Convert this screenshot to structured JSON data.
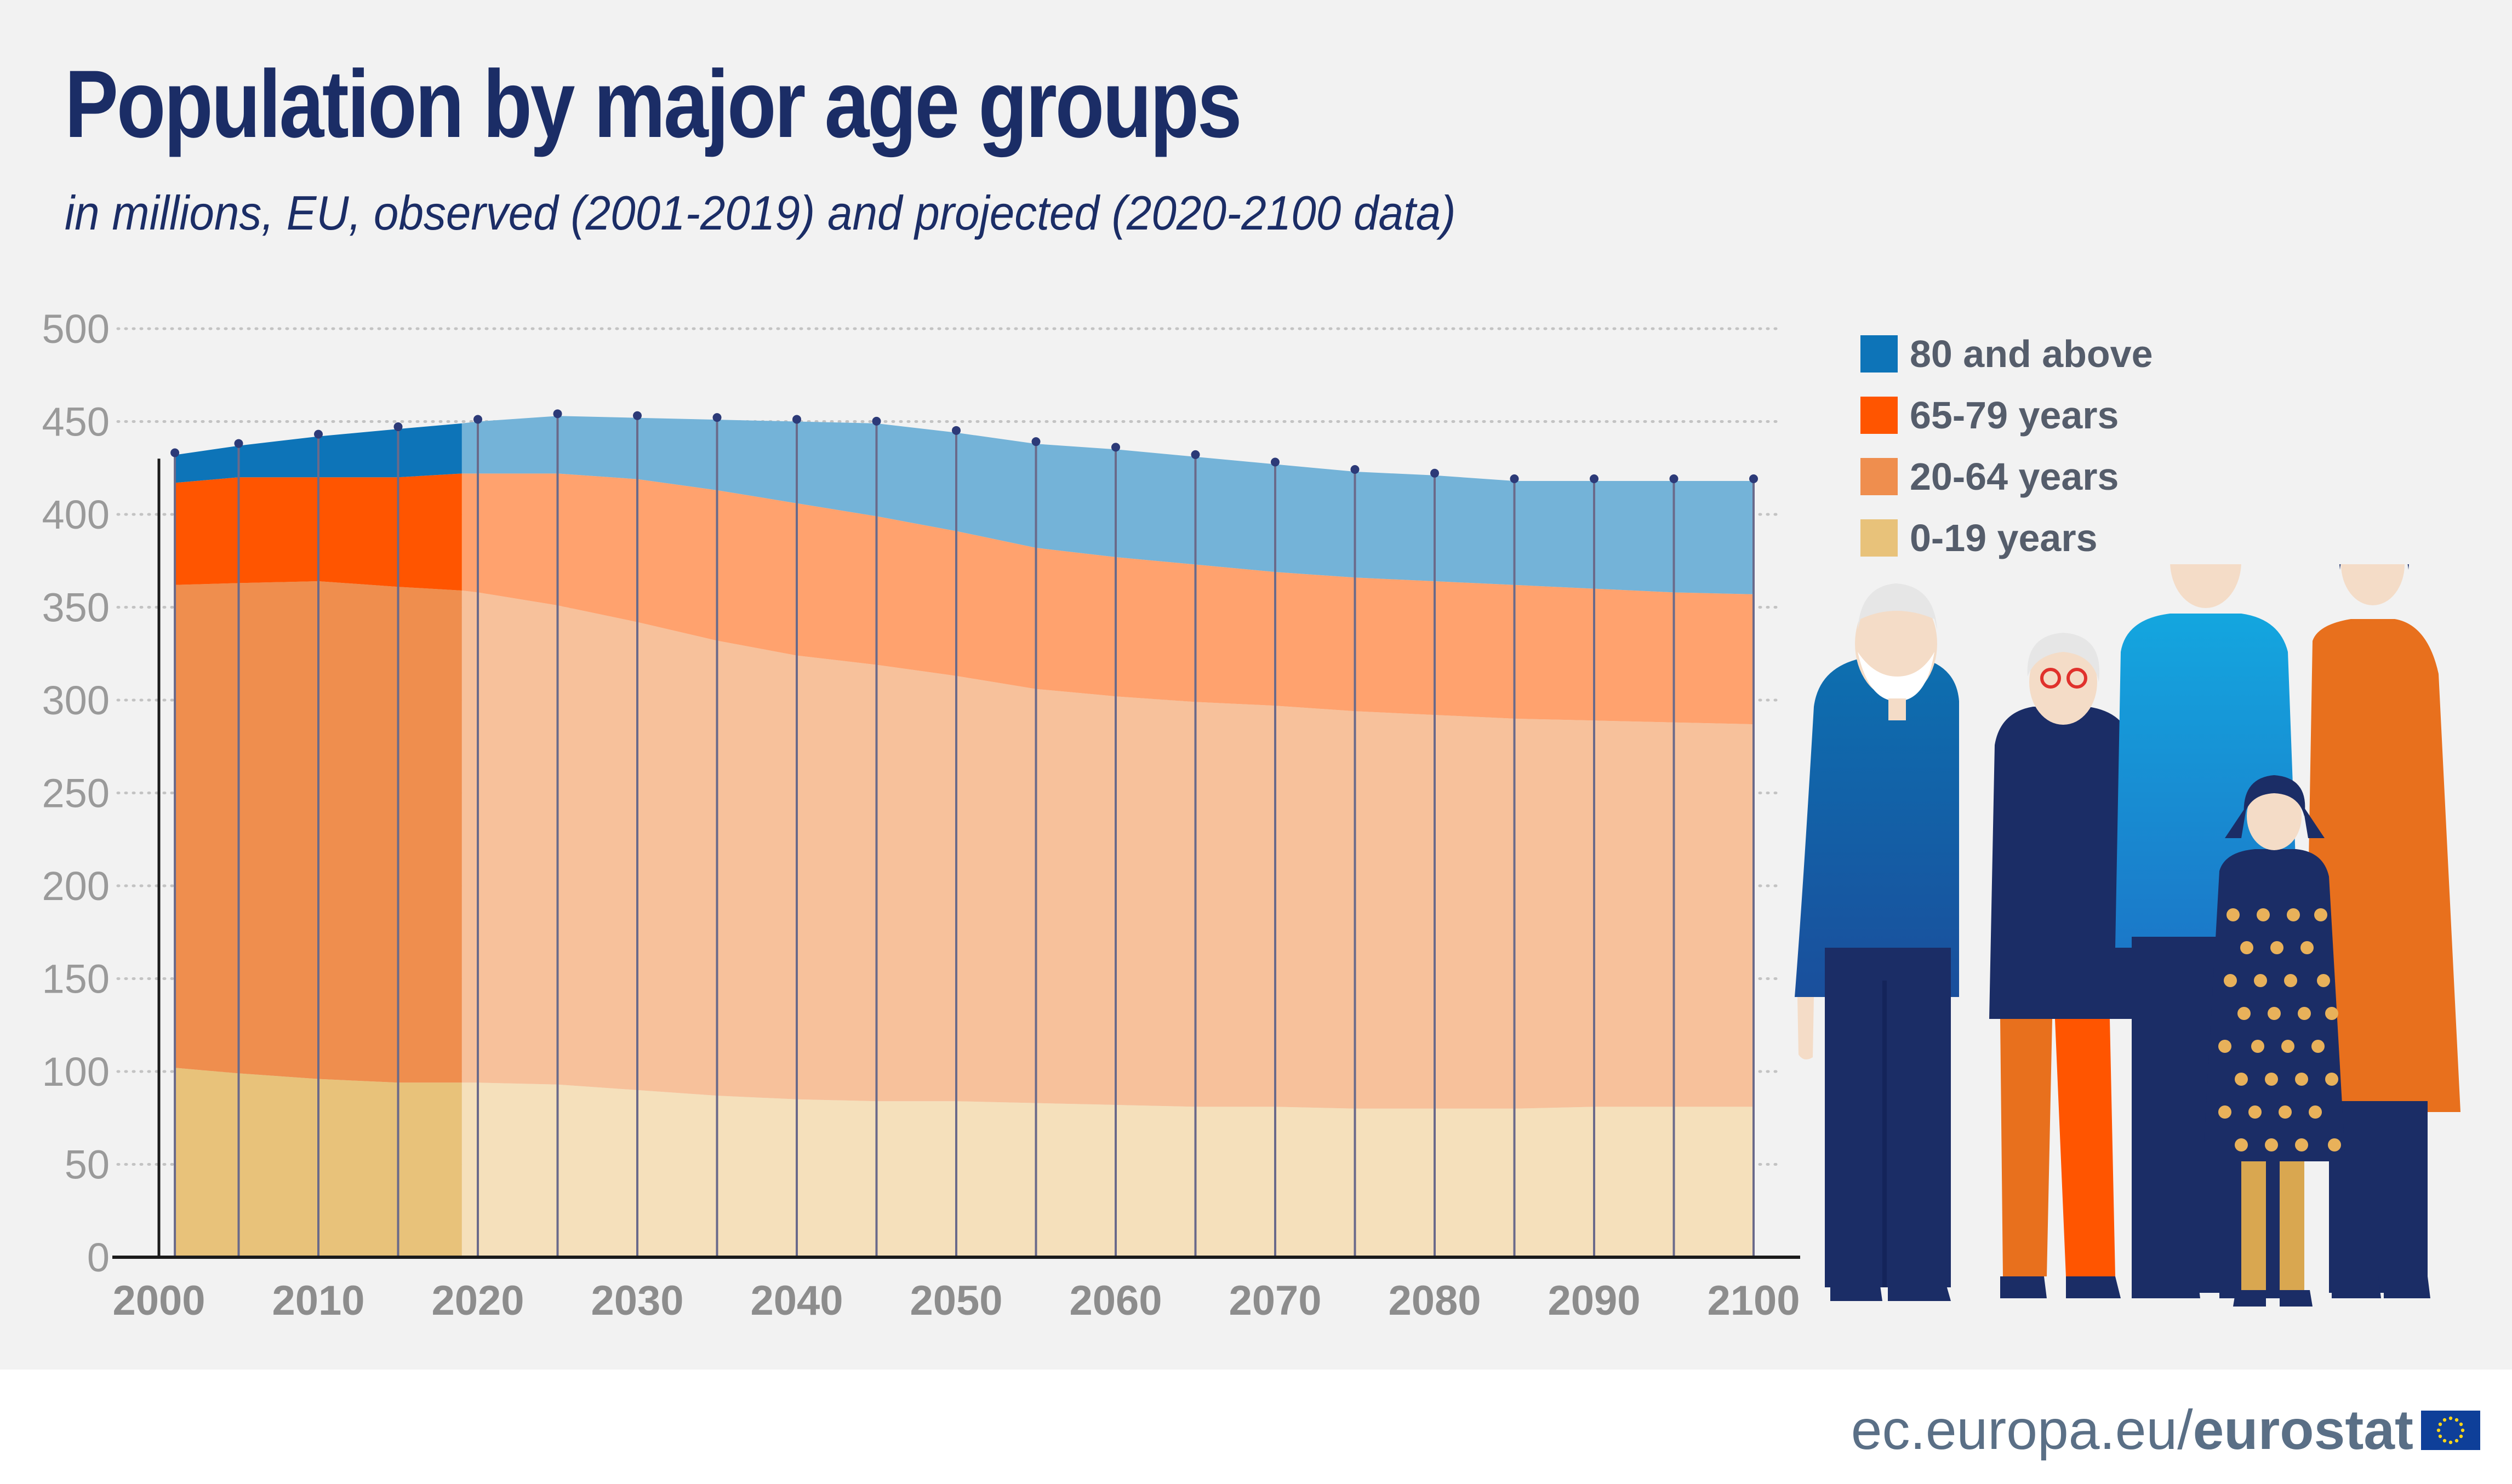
{
  "header": {
    "title": "Population by major age groups",
    "subtitle": "in millions, EU, observed (2001-2019) and projected (2020-2100 data)"
  },
  "chart_data": {
    "type": "area",
    "stacked": true,
    "title": "Population by major age groups",
    "subtitle": "in millions, EU, observed (2001-2019) and projected (2020-2100 data)",
    "xlabel": "",
    "ylabel": "",
    "xlim": [
      2000,
      2100
    ],
    "ylim": [
      0,
      500
    ],
    "x_ticks": [
      2000,
      2010,
      2020,
      2030,
      2040,
      2050,
      2060,
      2070,
      2080,
      2090,
      2100
    ],
    "y_ticks": [
      0,
      50,
      100,
      150,
      200,
      250,
      300,
      350,
      400,
      450,
      500
    ],
    "grid": "horizontal dotted",
    "legend_position": "right",
    "observed_range": [
      2001,
      2019
    ],
    "projected_range": [
      2020,
      2100
    ],
    "x": [
      2001,
      2005,
      2010,
      2015,
      2019,
      2020,
      2025,
      2030,
      2035,
      2040,
      2045,
      2050,
      2055,
      2060,
      2065,
      2070,
      2075,
      2080,
      2085,
      2090,
      2095,
      2100
    ],
    "series": [
      {
        "name": "0-19 years",
        "observed_color": "#e8c27a",
        "projected_color": "#f5e0bb",
        "values": [
          102,
          99,
          96,
          94,
          94,
          94,
          93,
          90,
          87,
          85,
          84,
          84,
          83,
          82,
          81,
          81,
          80,
          80,
          80,
          81,
          81,
          81
        ]
      },
      {
        "name": "20-64 years",
        "observed_color": "#ef8e4e",
        "projected_color": "#f7c19b",
        "values": [
          260,
          264,
          268,
          267,
          265,
          264,
          258,
          252,
          245,
          239,
          235,
          229,
          223,
          220,
          218,
          216,
          214,
          212,
          210,
          208,
          207,
          206
        ]
      },
      {
        "name": "65-79 years",
        "observed_color": "#ff5500",
        "projected_color": "#ffa26e",
        "values": [
          55,
          57,
          56,
          59,
          63,
          64,
          71,
          77,
          81,
          82,
          80,
          78,
          76,
          75,
          74,
          72,
          72,
          72,
          72,
          71,
          70,
          70
        ]
      },
      {
        "name": "80 and above",
        "observed_color": "#0d74b8",
        "projected_color": "#74b3d8",
        "values": [
          15,
          17,
          22,
          26,
          27,
          28,
          31,
          33,
          38,
          44,
          50,
          53,
          56,
          58,
          58,
          58,
          57,
          57,
          56,
          58,
          60,
          61
        ]
      }
    ]
  },
  "legend": [
    {
      "label": "80 and above",
      "color": "#0d74b8"
    },
    {
      "label": "65-79 years",
      "color": "#ff5500"
    },
    {
      "label": "20-64 years",
      "color": "#ef8e4e"
    },
    {
      "label": "0-19 years",
      "color": "#e8c27a"
    }
  ],
  "illustration": {
    "icon": "family-illustration"
  },
  "footer": {
    "url": "ec.europa.eu/",
    "brand": "eurostat",
    "logo": "eu-flag-icon"
  }
}
